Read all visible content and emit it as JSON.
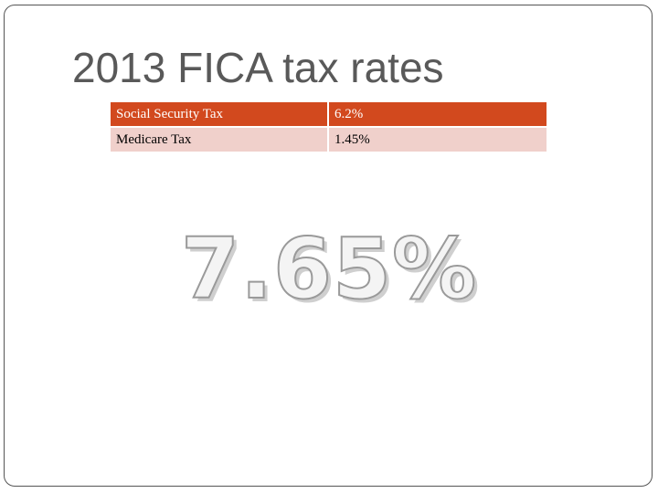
{
  "slide": {
    "title": "2013 FICA tax rates",
    "total_rate": "7.65%"
  },
  "table": {
    "rows": [
      {
        "label": "Social Security Tax",
        "value": "6.2%"
      },
      {
        "label": "Medicare Tax",
        "value": "1.45%"
      }
    ]
  },
  "colors": {
    "header_row": "#d2491e",
    "body_row": "#f0d0cb",
    "title_text": "#595959"
  }
}
